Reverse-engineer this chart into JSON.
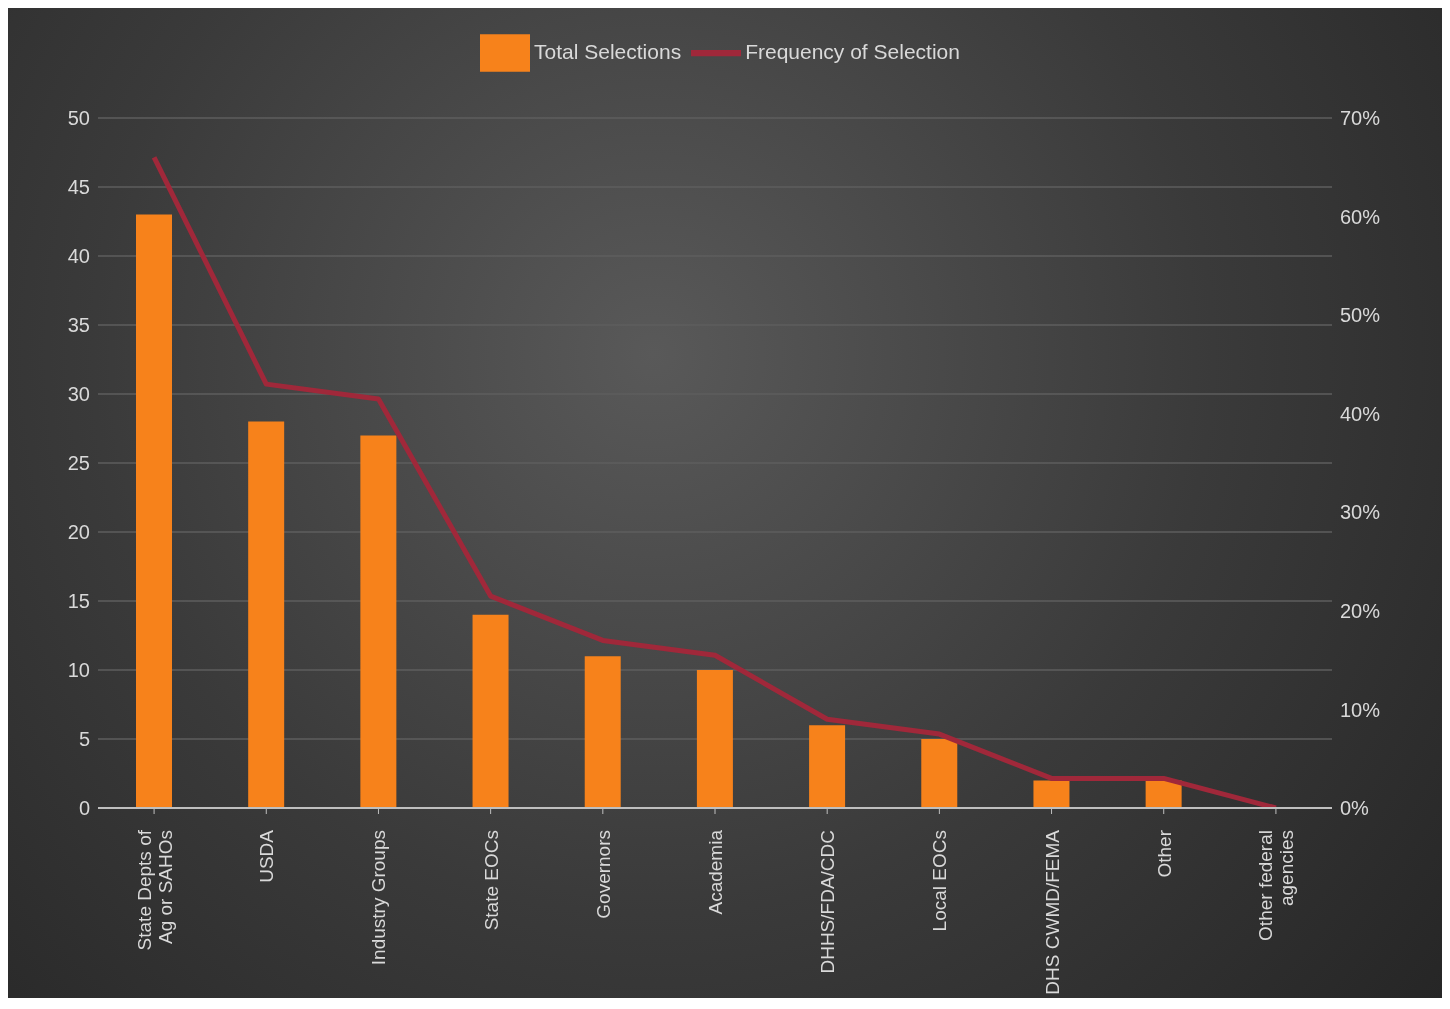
{
  "chart_data": {
    "type": "bar",
    "categories": [
      "State Depts of Ag or SAHOs",
      "USDA",
      "Industry Groups",
      "State EOCs",
      "Governors",
      "Academia",
      "DHHS/FDA/CDC",
      "Local EOCs",
      "DHS CWMD/FEMA",
      "Other",
      "Other federal agencies"
    ],
    "series": [
      {
        "name": "Total Selections",
        "color": "#f7821b",
        "values": [
          43,
          28,
          27,
          14,
          11,
          10,
          6,
          5,
          2,
          2,
          0
        ]
      },
      {
        "name": "Frequency of Selection",
        "type": "line",
        "axis": "y2",
        "color": "#a0283a",
        "values": [
          66,
          43,
          41.5,
          21.5,
          17,
          15.5,
          9,
          7.5,
          3,
          3,
          0
        ]
      }
    ],
    "ylim": [
      0,
      50
    ],
    "yticks": [
      0,
      5,
      10,
      15,
      20,
      25,
      30,
      35,
      40,
      45,
      50
    ],
    "y2lim": [
      0,
      70
    ],
    "y2ticks": [
      {
        "value": 0,
        "label": "0%"
      },
      {
        "value": 10,
        "label": "10%"
      },
      {
        "value": 20,
        "label": "20%"
      },
      {
        "value": 30,
        "label": "30%"
      },
      {
        "value": 40,
        "label": "40%"
      },
      {
        "value": 50,
        "label": "50%"
      },
      {
        "value": 60,
        "label": "60%"
      },
      {
        "value": 70,
        "label": "70%"
      }
    ],
    "grid": "y",
    "legend": "top",
    "marker": "none",
    "line_style": "solid"
  }
}
